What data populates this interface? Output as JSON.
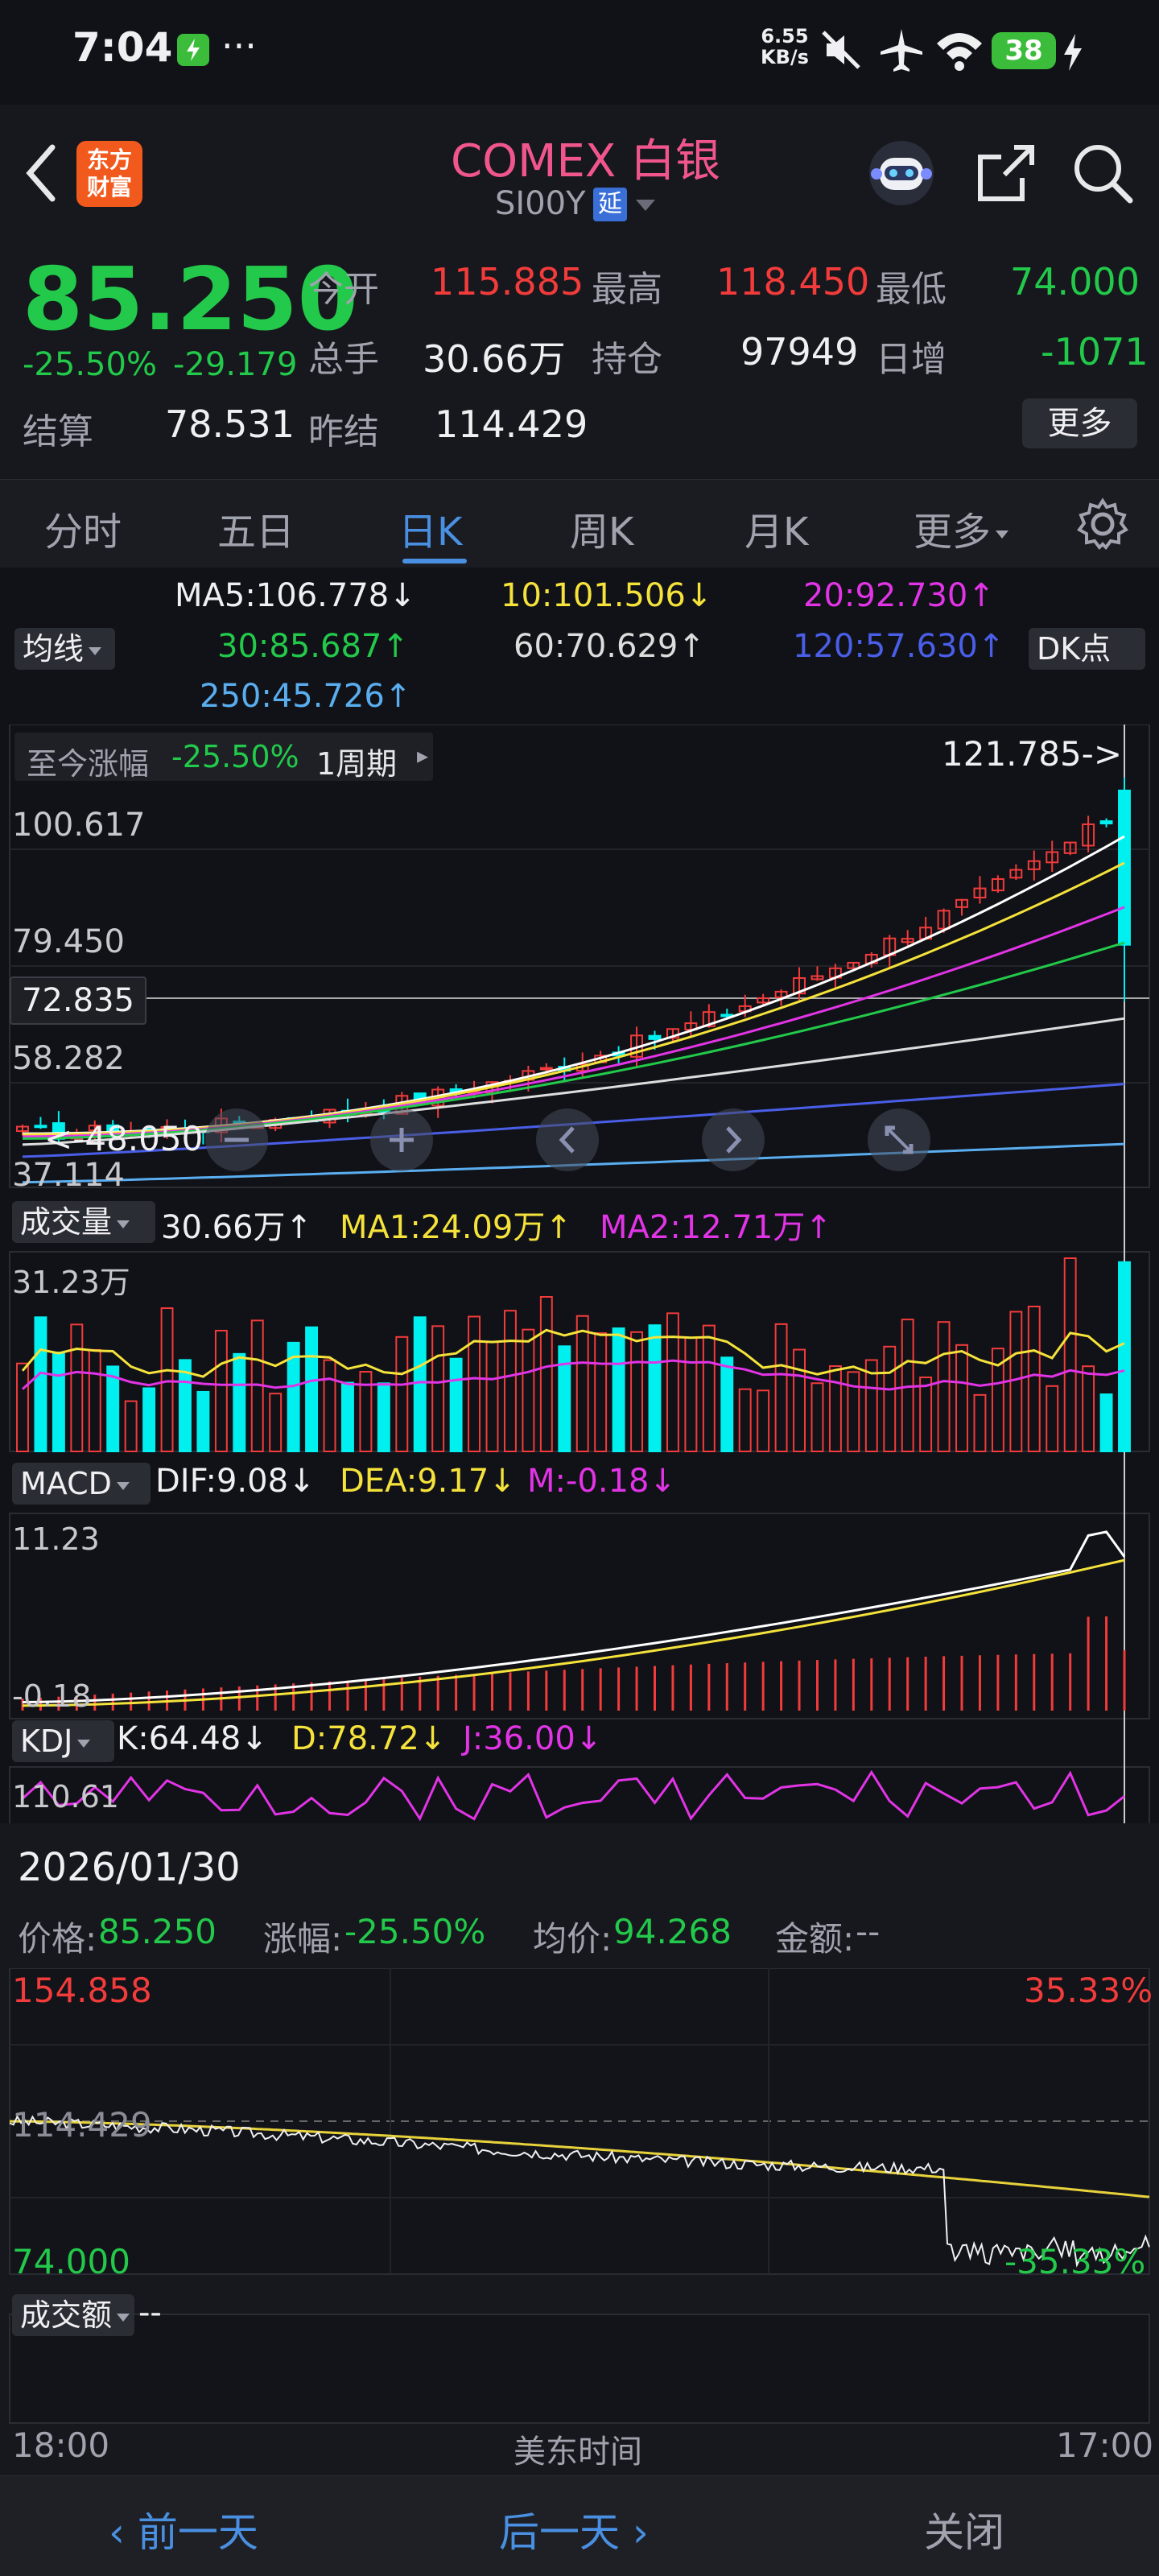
{
  "status_bar": {
    "time": "7:04",
    "more": "···",
    "net_speed_top": "6.55",
    "net_speed_bottom": "KB/s",
    "battery": "38"
  },
  "header": {
    "logo_line1": "东方",
    "logo_line2": "财富",
    "title": "COMEX 白银",
    "code": "SI00Y",
    "delay_badge": "延"
  },
  "quote": {
    "price": "85.250",
    "change_pct": "-25.50%",
    "change": "-29.179",
    "open_label": "今开",
    "open": "115.885",
    "high_label": "最高",
    "high": "118.450",
    "low_label": "最低",
    "low": "74.000",
    "volume_label": "总手",
    "volume": "30.66万",
    "oi_label": "持仓",
    "oi": "97949",
    "daily_inc_label": "日增",
    "daily_inc": "-1071",
    "settle_label": "结算",
    "settle": "78.531",
    "prev_settle_label": "昨结",
    "prev_settle": "114.429",
    "more_button": "更多"
  },
  "tabs": [
    {
      "label": "分时",
      "active": false
    },
    {
      "label": "五日",
      "active": false
    },
    {
      "label": "日K",
      "active": true
    },
    {
      "label": "周K",
      "active": false
    },
    {
      "label": "月K",
      "active": false
    },
    {
      "label": "更多",
      "active": false
    }
  ],
  "ma": {
    "ma5": "MA5:106.778↓",
    "ma10": "10:101.506↓",
    "ma20": "20:92.730↑",
    "ma30": "30:85.687↑",
    "ma60": "60:70.629↑",
    "ma120": "120:57.630↑",
    "ma250": "250:45.726↑",
    "selector": "均线",
    "dk_button": "DK点"
  },
  "main_chart": {
    "period_gain_label": "至今涨幅",
    "period_gain": "-25.50%",
    "period_button": "1周期",
    "max_label": "121.785->",
    "min_label": "<-48.050",
    "y_labels": [
      "100.617",
      "79.450",
      "58.282",
      "37.114"
    ],
    "crosshair_price": "72.835"
  },
  "volume": {
    "selector": "成交量",
    "value": "30.66万↑",
    "ma1": "MA1:24.09万↑",
    "ma2": "MA2:12.71万↑",
    "max_label": "31.23万"
  },
  "macd": {
    "selector": "MACD",
    "dif": "DIF:9.08↓",
    "dea": "DEA:9.17↓",
    "m": "M:-0.18↓",
    "top_label": "11.23",
    "bottom_label": "-0.18"
  },
  "kdj": {
    "selector": "KDJ",
    "k": "K:64.48↓",
    "d": "D:78.72↓",
    "j": "J:36.00↓",
    "top_label": "110.61"
  },
  "detail": {
    "date": "2026/01/30",
    "price_label": "价格:",
    "price": "85.250",
    "chg_label": "涨幅:",
    "chg": "-25.50%",
    "avg_label": "均价:",
    "avg": "94.268",
    "amount_label": "金额:",
    "amount": "--",
    "high_price": "154.858",
    "high_pct": "35.33%",
    "prev_price": "114.429",
    "low_price": "74.000",
    "low_pct": "-35.33%",
    "turnover_selector": "成交额",
    "turnover": "--",
    "time_start": "18:00",
    "time_zone": "美东时间",
    "time_end": "17:00"
  },
  "bottom": {
    "prev_day": "前一天",
    "next_day": "后一天",
    "close": "关闭"
  },
  "colors": {
    "up": "#f23b3b",
    "down": "#00f0f0",
    "green": "#23c94a",
    "accent": "#4a90e2",
    "ma5": "#ffffff",
    "ma10": "#f5e23b",
    "ma20": "#e234e6",
    "ma30": "#23c94a",
    "ma60": "#dddddd",
    "ma120": "#4a5ee8",
    "ma250": "#5aaef0"
  },
  "icons": [
    "back-icon",
    "robot-icon",
    "share-icon",
    "search-icon",
    "gear-icon",
    "zoom-in-icon",
    "scroll-left-icon",
    "scroll-right-icon",
    "fullscreen-icon"
  ],
  "chart_data": [
    {
      "type": "candlestick",
      "title": "",
      "ylim": [
        37.114,
        121.785
      ],
      "y_ticks": [
        100.617,
        79.45,
        58.282,
        37.114
      ],
      "last_candle": {
        "open": 115.885,
        "high": 118.45,
        "low": 74.0,
        "close": 85.25
      },
      "moving_averages": {
        "MA5": 106.778,
        "MA10": 101.506,
        "MA20": 92.73,
        "MA30": 85.687,
        "MA60": 70.629,
        "MA120": 57.63,
        "MA250": 45.726
      }
    },
    {
      "type": "bar",
      "title": "成交量",
      "ymax": "31.23万",
      "last": "30.66万"
    },
    {
      "type": "line",
      "title": "MACD",
      "ylim": [
        -0.18,
        11.23
      ],
      "series": [
        {
          "name": "DIF",
          "last": 9.08
        },
        {
          "name": "DEA",
          "last": 9.17
        }
      ]
    },
    {
      "type": "line",
      "title": "分时",
      "ylim": [
        74.0,
        154.858
      ],
      "reference": 114.429,
      "pct_range": [
        -35.33,
        35.33
      ]
    }
  ]
}
